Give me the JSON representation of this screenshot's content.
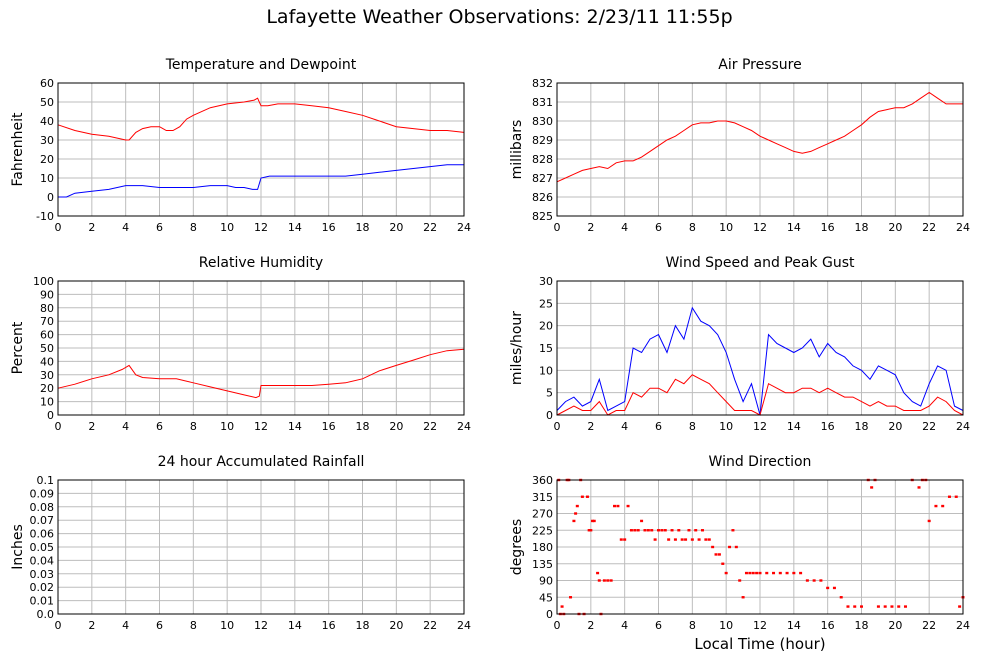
{
  "page": {
    "title": "Lafayette Weather Observations: 2/23/11 11:55p"
  },
  "chart_data": [
    {
      "id": "temp",
      "type": "line",
      "title": "Temperature and Dewpoint",
      "ylabel": "Fahrenheit",
      "xlabel": "",
      "xlim": [
        0,
        24
      ],
      "ylim": [
        -10,
        60
      ],
      "xticks": [
        0,
        2,
        4,
        6,
        8,
        10,
        12,
        14,
        16,
        18,
        20,
        22,
        24
      ],
      "yticks": [
        -10,
        0,
        10,
        20,
        30,
        40,
        50,
        60
      ],
      "series": [
        {
          "color": "#ff0000",
          "x": [
            0,
            1,
            2,
            3,
            4,
            4.2,
            4.6,
            5,
            5.5,
            6,
            6.4,
            6.8,
            7.2,
            7.6,
            8,
            9,
            10,
            11,
            11.6,
            11.8,
            12,
            12.4,
            13,
            14,
            15,
            16,
            17,
            18,
            19,
            20,
            21,
            22,
            23,
            24
          ],
          "y": [
            38,
            35,
            33,
            32,
            30,
            30,
            34,
            36,
            37,
            37,
            35,
            35,
            37,
            41,
            43,
            47,
            49,
            50,
            51,
            52,
            48,
            48,
            49,
            49,
            48,
            47,
            45,
            43,
            40,
            37,
            36,
            35,
            35,
            34
          ]
        },
        {
          "color": "#0000ff",
          "x": [
            0,
            0.5,
            1,
            2,
            3,
            4,
            5,
            6,
            7,
            8,
            9,
            10,
            10.5,
            11,
            11.5,
            11.8,
            12,
            12.5,
            13,
            14,
            15,
            16,
            17,
            18,
            19,
            20,
            21,
            22,
            23,
            24
          ],
          "y": [
            0,
            0,
            2,
            3,
            4,
            6,
            6,
            5,
            5,
            5,
            6,
            6,
            5,
            5,
            4,
            4,
            10,
            11,
            11,
            11,
            11,
            11,
            11,
            12,
            13,
            14,
            15,
            16,
            17,
            17
          ]
        }
      ]
    },
    {
      "id": "pressure",
      "type": "line",
      "title": "Air Pressure",
      "ylabel": "millibars",
      "xlabel": "",
      "xlim": [
        0,
        24
      ],
      "ylim": [
        825,
        832
      ],
      "xticks": [
        0,
        2,
        4,
        6,
        8,
        10,
        12,
        14,
        16,
        18,
        20,
        22,
        24
      ],
      "yticks": [
        825,
        826,
        827,
        828,
        829,
        830,
        831,
        832
      ],
      "series": [
        {
          "color": "#ff0000",
          "x": [
            0,
            0.5,
            1,
            1.5,
            2,
            2.5,
            3,
            3.5,
            4,
            4.5,
            5,
            5.5,
            6,
            6.5,
            7,
            7.5,
            8,
            8.5,
            9,
            9.5,
            10,
            10.5,
            11,
            11.5,
            12,
            12.5,
            13,
            13.5,
            14,
            14.5,
            15,
            15.5,
            16,
            16.5,
            17,
            17.5,
            18,
            18.5,
            19,
            19.5,
            20,
            20.5,
            21,
            21.5,
            22,
            22.5,
            23,
            23.5,
            24
          ],
          "y": [
            826.8,
            827,
            827.2,
            827.4,
            827.5,
            827.6,
            827.5,
            827.8,
            827.9,
            827.9,
            828.1,
            828.4,
            828.7,
            829,
            829.2,
            829.5,
            829.8,
            829.9,
            829.9,
            830,
            830,
            829.9,
            829.7,
            829.5,
            829.2,
            829,
            828.8,
            828.6,
            828.4,
            828.3,
            828.4,
            828.6,
            828.8,
            829,
            829.2,
            829.5,
            829.8,
            830.2,
            830.5,
            830.6,
            830.7,
            830.7,
            830.9,
            831.2,
            831.5,
            831.2,
            830.9,
            830.9,
            830.9
          ]
        }
      ]
    },
    {
      "id": "humidity",
      "type": "line",
      "title": "Relative Humidity",
      "ylabel": "Percent",
      "xlabel": "",
      "xlim": [
        0,
        24
      ],
      "ylim": [
        0,
        100
      ],
      "xticks": [
        0,
        2,
        4,
        6,
        8,
        10,
        12,
        14,
        16,
        18,
        20,
        22,
        24
      ],
      "yticks": [
        0,
        10,
        20,
        30,
        40,
        50,
        60,
        70,
        80,
        90,
        100
      ],
      "series": [
        {
          "color": "#ff0000",
          "x": [
            0,
            1,
            2,
            3,
            3.8,
            4.2,
            4.6,
            5,
            6,
            7,
            8,
            9,
            10,
            11,
            11.7,
            11.9,
            12,
            13,
            14,
            15,
            16,
            17,
            18,
            19,
            20,
            21,
            22,
            23,
            24
          ],
          "y": [
            20,
            23,
            27,
            30,
            34,
            37,
            30,
            28,
            27,
            27,
            24,
            21,
            18,
            15,
            13,
            14,
            22,
            22,
            22,
            22,
            23,
            24,
            27,
            33,
            37,
            41,
            45,
            48,
            49
          ]
        }
      ]
    },
    {
      "id": "wind",
      "type": "line",
      "title": "Wind Speed and Peak Gust",
      "ylabel": "miles/hour",
      "xlabel": "",
      "xlim": [
        0,
        24
      ],
      "ylim": [
        0,
        30
      ],
      "xticks": [
        0,
        2,
        4,
        6,
        8,
        10,
        12,
        14,
        16,
        18,
        20,
        22,
        24
      ],
      "yticks": [
        0,
        5,
        10,
        15,
        20,
        25,
        30
      ],
      "series": [
        {
          "color": "#0000ff",
          "x": [
            0,
            0.5,
            1,
            1.5,
            2,
            2.5,
            3,
            3.5,
            4,
            4.5,
            5,
            5.5,
            6,
            6.5,
            7,
            7.5,
            8,
            8.5,
            9,
            9.5,
            10,
            10.5,
            11,
            11.5,
            12,
            12.5,
            13,
            13.5,
            14,
            14.5,
            15,
            15.5,
            16,
            16.5,
            17,
            17.5,
            18,
            18.5,
            19,
            19.5,
            20,
            20.5,
            21,
            21.5,
            22,
            22.5,
            23,
            23.5,
            24
          ],
          "y": [
            1,
            3,
            4,
            2,
            3,
            8,
            1,
            2,
            3,
            15,
            14,
            17,
            18,
            14,
            20,
            17,
            24,
            21,
            20,
            18,
            14,
            8,
            3,
            7,
            0,
            18,
            16,
            15,
            14,
            15,
            17,
            13,
            16,
            14,
            13,
            11,
            10,
            8,
            11,
            10,
            9,
            5,
            3,
            2,
            7,
            11,
            10,
            2,
            1
          ]
        },
        {
          "color": "#ff0000",
          "x": [
            0,
            0.5,
            1,
            1.5,
            2,
            2.5,
            3,
            3.5,
            4,
            4.5,
            5,
            5.5,
            6,
            6.5,
            7,
            7.5,
            8,
            8.5,
            9,
            9.5,
            10,
            10.5,
            11,
            11.5,
            12,
            12.5,
            13,
            13.5,
            14,
            14.5,
            15,
            15.5,
            16,
            16.5,
            17,
            17.5,
            18,
            18.5,
            19,
            19.5,
            20,
            20.5,
            21,
            21.5,
            22,
            22.5,
            23,
            23.5,
            24
          ],
          "y": [
            0,
            1,
            2,
            1,
            1,
            3,
            0,
            1,
            1,
            5,
            4,
            6,
            6,
            5,
            8,
            7,
            9,
            8,
            7,
            5,
            3,
            1,
            1,
            1,
            0,
            7,
            6,
            5,
            5,
            6,
            6,
            5,
            6,
            5,
            4,
            4,
            3,
            2,
            3,
            2,
            2,
            1,
            1,
            1,
            2,
            4,
            3,
            1,
            0
          ]
        }
      ]
    },
    {
      "id": "rain",
      "type": "line",
      "title": "24 hour Accumulated Rainfall",
      "ylabel": "Inches",
      "xlabel": "",
      "xlim": [
        0,
        24
      ],
      "ylim": [
        0,
        0.1
      ],
      "xticks": [
        0,
        2,
        4,
        6,
        8,
        10,
        12,
        14,
        16,
        18,
        20,
        22,
        24
      ],
      "yticks": [
        0,
        0.01,
        0.02,
        0.03,
        0.04,
        0.05,
        0.06,
        0.07,
        0.08,
        0.09,
        0.1
      ],
      "yticklabels": [
        "0.0",
        "0.01",
        "0.02",
        "0.03",
        "0.04",
        "0.05",
        "0.06",
        "0.07",
        "0.08",
        "0.09",
        "0.1"
      ],
      "series": [
        {
          "color": "#ff0000",
          "x": [
            0,
            24
          ],
          "y": [
            0,
            0
          ]
        }
      ]
    },
    {
      "id": "winddir",
      "type": "scatter",
      "title": "Wind Direction",
      "ylabel": "degrees",
      "xlabel": "Local Time (hour)",
      "xlim": [
        0,
        24
      ],
      "ylim": [
        0,
        360
      ],
      "xticks": [
        0,
        2,
        4,
        6,
        8,
        10,
        12,
        14,
        16,
        18,
        20,
        22,
        24
      ],
      "yticks": [
        0,
        45,
        90,
        135,
        180,
        225,
        270,
        315,
        360
      ],
      "series": [
        {
          "color": "#ff0000",
          "x": [
            0.1,
            0.2,
            0.3,
            0.4,
            0.6,
            0.7,
            0.8,
            1.0,
            1.1,
            1.2,
            1.3,
            1.4,
            1.5,
            1.6,
            1.8,
            1.9,
            2.0,
            2.1,
            2.2,
            2.4,
            2.5,
            2.6,
            2.8,
            3.0,
            3.2,
            3.4,
            3.6,
            3.8,
            4.0,
            4.2,
            4.4,
            4.6,
            4.8,
            5.0,
            5.2,
            5.4,
            5.6,
            5.8,
            6.0,
            6.2,
            6.4,
            6.6,
            6.8,
            7.0,
            7.2,
            7.4,
            7.6,
            7.8,
            8.0,
            8.2,
            8.4,
            8.6,
            8.8,
            9.0,
            9.2,
            9.4,
            9.6,
            9.8,
            10.0,
            10.2,
            10.4,
            10.6,
            10.8,
            11.0,
            11.2,
            11.4,
            11.6,
            11.8,
            12.0,
            12.4,
            12.8,
            13.2,
            13.6,
            14.0,
            14.4,
            14.8,
            15.2,
            15.6,
            16.0,
            16.4,
            16.8,
            17.2,
            17.6,
            18.0,
            18.4,
            18.6,
            18.8,
            19.0,
            19.4,
            19.8,
            20.2,
            20.6,
            21.0,
            21.4,
            21.6,
            21.8,
            22.0,
            22.4,
            22.8,
            23.2,
            23.6,
            23.8,
            24.0
          ],
          "y": [
            360,
            0,
            20,
            0,
            360,
            360,
            45,
            250,
            270,
            290,
            0,
            360,
            315,
            0,
            315,
            225,
            225,
            250,
            250,
            110,
            90,
            0,
            90,
            90,
            90,
            290,
            290,
            200,
            200,
            290,
            225,
            225,
            225,
            250,
            225,
            225,
            225,
            200,
            225,
            225,
            225,
            200,
            225,
            200,
            225,
            200,
            200,
            225,
            200,
            225,
            200,
            225,
            200,
            200,
            180,
            160,
            160,
            135,
            110,
            180,
            225,
            180,
            90,
            45,
            110,
            110,
            110,
            110,
            110,
            110,
            110,
            110,
            110,
            110,
            110,
            90,
            90,
            90,
            70,
            70,
            45,
            20,
            20,
            20,
            360,
            340,
            360,
            20,
            20,
            20,
            20,
            20,
            360,
            340,
            360,
            360,
            250,
            290,
            290,
            315,
            315,
            20,
            45
          ]
        }
      ]
    }
  ]
}
